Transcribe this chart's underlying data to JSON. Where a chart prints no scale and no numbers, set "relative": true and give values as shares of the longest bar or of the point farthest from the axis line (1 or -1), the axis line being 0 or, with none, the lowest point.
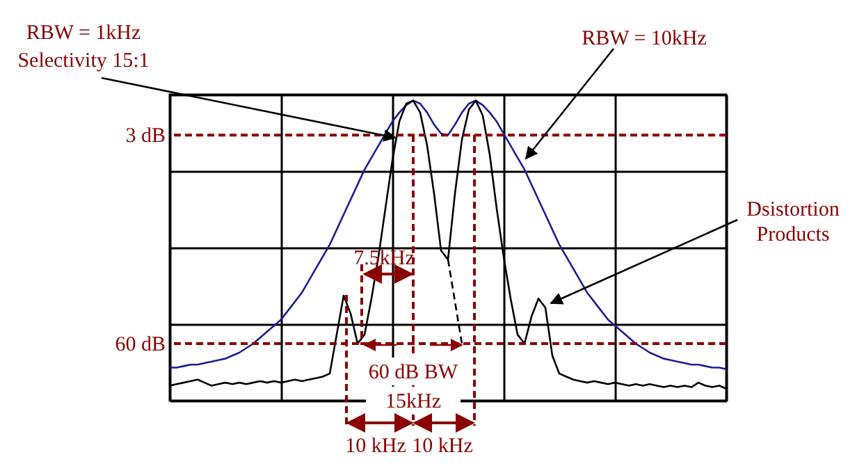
{
  "chart_data": {
    "type": "line",
    "relative": true,
    "grid": true,
    "categories": [
      null,
      null,
      null,
      null,
      null,
      null,
      null,
      null,
      null,
      null,
      null,
      null,
      null,
      null,
      null,
      null,
      null,
      null,
      null,
      null,
      null,
      null,
      null,
      null,
      null,
      null,
      null,
      null,
      null,
      null,
      null,
      null,
      null,
      null,
      null,
      null,
      null,
      null,
      null,
      null,
      null,
      null,
      null,
      null,
      null,
      null,
      null,
      null,
      null,
      null,
      null,
      null,
      null,
      null,
      null,
      null,
      null,
      null,
      null,
      null,
      null,
      null,
      null,
      null,
      null,
      null,
      null,
      null,
      null,
      null,
      null,
      null,
      null,
      null,
      null,
      null,
      null,
      null,
      null,
      null,
      null
    ],
    "series": [
      {
        "color": "#1c1c96",
        "values": [
          0.11,
          0.11,
          0.115,
          0.12,
          0.12,
          0.125,
          0.13,
          0.135,
          0.14,
          0.15,
          0.16,
          0.175,
          0.19,
          0.21,
          0.23,
          0.25,
          0.27,
          0.3,
          0.33,
          0.36,
          0.4,
          0.44,
          0.48,
          0.52,
          0.57,
          0.62,
          0.67,
          0.72,
          0.77,
          0.81,
          0.85,
          0.89,
          0.93,
          0.96,
          0.985,
          1,
          0.99,
          0.96,
          0.92,
          0.89,
          0.885,
          0.92,
          0.96,
          0.99,
          1,
          0.985,
          0.96,
          0.93,
          0.89,
          0.85,
          0.81,
          0.77,
          0.72,
          0.67,
          0.62,
          0.57,
          0.52,
          0.48,
          0.44,
          0.4,
          0.36,
          0.33,
          0.3,
          0.27,
          0.25,
          0.23,
          0.21,
          0.19,
          0.175,
          0.16,
          0.15,
          0.14,
          0.135,
          0.13,
          0.125,
          0.12,
          0.12,
          0.115,
          0.11,
          0.11,
          0.105
        ]
      },
      {
        "color": "#000000",
        "values": [
          0.05,
          0.055,
          0.06,
          0.065,
          0.07,
          0.06,
          0.05,
          0.055,
          0.06,
          0.055,
          0.06,
          0.055,
          0.06,
          0.065,
          0.06,
          0.065,
          0.06,
          0.065,
          0.07,
          0.065,
          0.07,
          0.075,
          0.08,
          0.09,
          0.22,
          0.35,
          0.29,
          0.19,
          0.22,
          0.34,
          0.48,
          0.64,
          0.8,
          0.93,
          0.99,
          1,
          0.96,
          0.85,
          0.69,
          0.5,
          0.47,
          0.69,
          0.87,
          0.97,
          1,
          0.95,
          0.82,
          0.64,
          0.48,
          0.34,
          0.22,
          0.19,
          0.28,
          0.34,
          0.31,
          0.15,
          0.09,
          0.08,
          0.07,
          0.065,
          0.06,
          0.065,
          0.06,
          0.055,
          0.06,
          0.055,
          0.05,
          0.055,
          0.05,
          0.055,
          0.05,
          0.045,
          0.05,
          0.045,
          0.05,
          0.045,
          0.06,
          0.05,
          0.045,
          0.05,
          0.04
        ]
      },
      {
        "color": "#000000",
        "line_style": "dashed",
        "values": [
          null,
          null,
          null,
          null,
          null,
          null,
          null,
          null,
          null,
          null,
          null,
          null,
          null,
          null,
          null,
          null,
          null,
          null,
          null,
          null,
          null,
          null,
          null,
          null,
          null,
          null,
          null,
          null,
          null,
          null,
          null,
          null,
          null,
          null,
          null,
          null,
          null,
          null,
          null,
          null,
          0.47,
          0.33,
          0.19,
          null,
          null,
          null,
          null,
          null,
          null,
          null,
          null,
          null,
          null,
          null,
          null,
          null,
          null,
          null,
          null,
          null,
          null,
          null,
          null,
          null,
          null,
          null,
          null,
          null,
          null,
          null,
          null,
          null,
          null,
          null,
          null,
          null,
          null,
          null,
          null,
          null,
          null
        ]
      }
    ],
    "ref_lines": [
      {
        "axis": "y",
        "value": 0.885,
        "label": "3 dB",
        "color": "#8b0000",
        "line_style": "dashed"
      },
      {
        "axis": "y",
        "value": 0.19,
        "label": "60 dB",
        "color": "#8b0000",
        "line_style": "dashed"
      }
    ],
    "annotations": [
      "RBW = 1kHz",
      "Selectivity 15:1",
      "RBW = 10kHz",
      "Dsistortion Products",
      "7.5kHz",
      "60 dB BW",
      "15kHz",
      "10 kHz",
      "10 kHz"
    ]
  }
}
